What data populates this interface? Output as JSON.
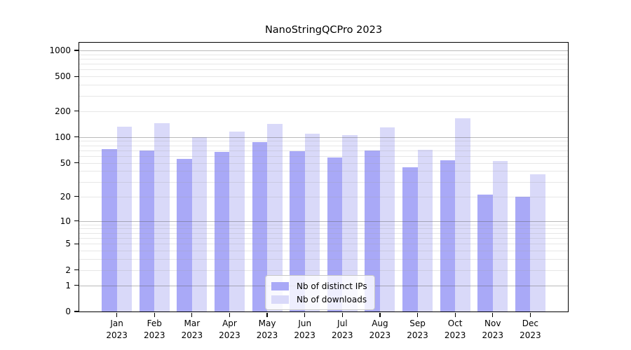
{
  "title": "NanoStringQCPro 2023",
  "chart_data": {
    "type": "bar",
    "title": "NanoStringQCPro 2023",
    "xlabel": "",
    "ylabel": "",
    "y_scale": "log1p",
    "ylim": [
      0,
      1200
    ],
    "grid": true,
    "legend_position": "bottom-center",
    "categories": [
      "Jan",
      "Feb",
      "Mar",
      "Apr",
      "May",
      "Jun",
      "Jul",
      "Aug",
      "Sep",
      "Oct",
      "Nov",
      "Dec"
    ],
    "year_label": "2023",
    "y_ticks": [
      0,
      1,
      2,
      5,
      10,
      20,
      50,
      100,
      200,
      500,
      1000
    ],
    "major_gridlines": [
      1,
      10,
      100,
      1000
    ],
    "minor_gridline_rule": "2-9 within each decade (2..9, 20..90, 200..900)",
    "series": [
      {
        "name": "Nb of distinct IPs",
        "color": "#a9a9f7",
        "values": [
          73,
          70,
          56,
          67,
          88,
          69,
          58,
          70,
          44,
          54,
          21,
          20
        ]
      },
      {
        "name": "Nb of downloads",
        "color": "#d9d9f9",
        "values": [
          133,
          145,
          100,
          116,
          143,
          110,
          105,
          130,
          71,
          164,
          53,
          37
        ]
      }
    ]
  }
}
